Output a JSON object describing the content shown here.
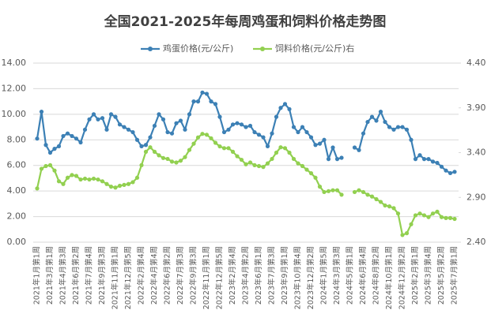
{
  "chart_data": {
    "type": "line",
    "title": "全国2021-2025年每周鸡蛋和饲料价格走势图",
    "categories": [
      "2021年1月第1周",
      null,
      null,
      "2021年3月第1周",
      null,
      null,
      "2021年4月第3周",
      null,
      null,
      "2021年6月第2周",
      null,
      null,
      "2021年7月第4周",
      null,
      null,
      "2021年9月第3周",
      null,
      null,
      "2021年11月第1周",
      null,
      null,
      "2021年12月第5周",
      null,
      null,
      "2022年2月第4周",
      null,
      null,
      "2022年4月第4周",
      null,
      null,
      "2022年6月第2周",
      null,
      null,
      "2022年7月第3周",
      null,
      null,
      "2022年9月第3周",
      null,
      null,
      "2022年11月第1周",
      null,
      null,
      "2022年12月第5周",
      null,
      null,
      "2023年2月第4周",
      null,
      null,
      "2023年4月第2周",
      null,
      null,
      "2023年6月第1周",
      null,
      null,
      "2023年7月第3周",
      null,
      null,
      "2023年9月第1周",
      null,
      null,
      "2023年10月第4周",
      null,
      null,
      "2023年12月第2周",
      null,
      null,
      "2024年1月第5周",
      null,
      null,
      "2024年3月第3周",
      null,
      null,
      "2024年5月第1周",
      null,
      null,
      "2024年6月第4周",
      null,
      null,
      "2024年8月第2周",
      null,
      null,
      "2024年10月第1周",
      null,
      null,
      "2024年12月第2周",
      null,
      null,
      "2025年2月第1周",
      null,
      null,
      "2025年3月第4周",
      null,
      null,
      "2025年5月第2周",
      null,
      null,
      "2025年7月第1周"
    ],
    "series": [
      {
        "name": "鸡蛋价格(元/公斤)",
        "color": "#3c80b5",
        "axis": "y",
        "values": [
          8.1,
          10.2,
          7.6,
          7.0,
          7.3,
          7.5,
          8.3,
          8.5,
          8.3,
          8.1,
          7.8,
          8.8,
          9.6,
          10.0,
          9.6,
          9.7,
          8.8,
          10.0,
          9.8,
          9.2,
          9.0,
          8.8,
          8.6,
          8.0,
          7.5,
          7.6,
          8.2,
          9.1,
          10.0,
          9.6,
          8.6,
          8.5,
          9.3,
          9.5,
          8.8,
          10.0,
          11.0,
          11.0,
          11.7,
          11.6,
          11.0,
          10.8,
          9.8,
          8.6,
          8.8,
          9.2,
          9.3,
          9.2,
          9.0,
          9.1,
          8.6,
          8.4,
          8.2,
          7.5,
          8.5,
          9.8,
          10.5,
          10.8,
          10.4,
          9.0,
          8.6,
          9.0,
          8.6,
          8.2,
          7.6,
          7.7,
          8.0,
          6.5,
          7.4,
          6.5,
          6.6,
          null,
          null,
          7.4,
          7.2,
          8.5,
          9.4,
          9.8,
          9.5,
          10.2,
          9.4,
          9.0,
          8.8,
          9.0,
          9.0,
          8.8,
          8.0,
          6.5,
          6.8,
          6.5,
          6.5,
          6.3,
          6.2,
          5.9,
          5.6,
          5.4,
          5.5
        ]
      },
      {
        "name": "饲料价格(元/公斤)右",
        "color": "#92d050",
        "axis": "y2",
        "values": [
          3.0,
          3.22,
          3.25,
          3.26,
          3.2,
          3.08,
          3.05,
          3.12,
          3.15,
          3.14,
          3.1,
          3.11,
          3.1,
          3.11,
          3.1,
          3.08,
          3.05,
          3.02,
          3.01,
          3.03,
          3.04,
          3.05,
          3.07,
          3.12,
          3.26,
          3.41,
          3.46,
          3.41,
          3.37,
          3.34,
          3.33,
          3.3,
          3.29,
          3.31,
          3.35,
          3.43,
          3.5,
          3.57,
          3.61,
          3.6,
          3.56,
          3.51,
          3.47,
          3.45,
          3.45,
          3.41,
          3.36,
          3.32,
          3.27,
          3.29,
          3.26,
          3.25,
          3.24,
          3.28,
          3.33,
          3.4,
          3.46,
          3.45,
          3.4,
          3.33,
          3.28,
          3.25,
          3.21,
          3.17,
          3.12,
          3.02,
          2.96,
          2.97,
          2.98,
          2.98,
          2.93,
          null,
          null,
          2.96,
          2.98,
          2.96,
          2.93,
          2.91,
          2.88,
          2.85,
          2.81,
          2.8,
          2.78,
          2.72,
          2.48,
          2.5,
          2.6,
          2.7,
          2.72,
          2.7,
          2.68,
          2.72,
          2.74,
          2.68,
          2.67,
          2.67,
          2.66
        ]
      }
    ],
    "ylim": [
      0,
      14
    ],
    "yticks": [
      {
        "value": 0,
        "label": "0.00"
      },
      {
        "value": 2,
        "label": "2.00"
      },
      {
        "value": 4,
        "label": "4.00"
      },
      {
        "value": 6,
        "label": "6.00"
      },
      {
        "value": 8,
        "label": "8.00"
      },
      {
        "value": 10,
        "label": "10.00"
      },
      {
        "value": 12,
        "label": "12.00"
      },
      {
        "value": 14,
        "label": "14.00"
      }
    ],
    "y2lim": [
      2.4,
      4.4
    ],
    "y2ticks": [
      {
        "value": 2.4,
        "label": "2.40"
      },
      {
        "value": 2.9,
        "label": "2.90"
      },
      {
        "value": 3.4,
        "label": "3.40"
      },
      {
        "value": 3.9,
        "label": "3.90"
      },
      {
        "value": 4.4,
        "label": "4.40"
      }
    ],
    "grid": true
  }
}
